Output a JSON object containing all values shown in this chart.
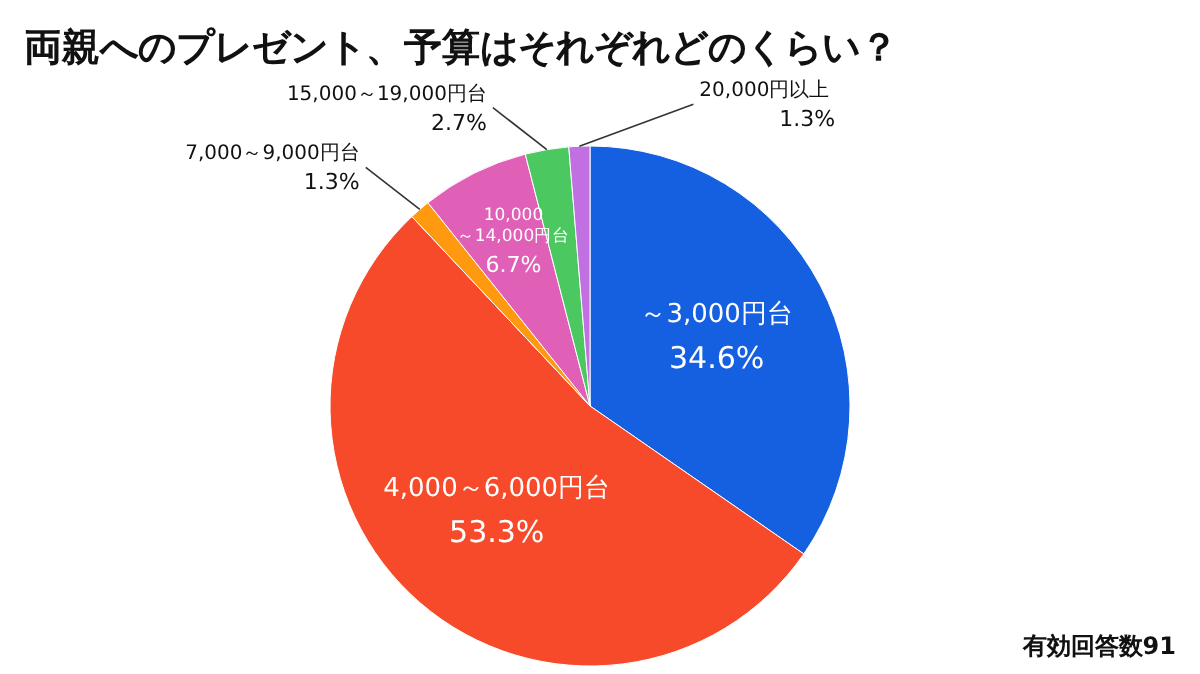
{
  "chart_data": {
    "type": "pie",
    "title": "両親へのプレゼント、予算はそれぞれどのくらい？",
    "categories": [
      "～3,000円台",
      "4,000～6,000円台",
      "7,000～9,000円台",
      "10,000～14,000円台",
      "15,000～19,000円台",
      "20,000円以上"
    ],
    "values": [
      34.6,
      53.3,
      1.3,
      6.7,
      2.7,
      1.3
    ],
    "colors": [
      "#1560e0",
      "#f64a2a",
      "#ff9a10",
      "#e060b8",
      "#4cc860",
      "#c070e0"
    ],
    "value_labels": [
      "34.6%",
      "53.3%",
      "1.3%",
      "6.7%",
      "2.7%",
      "1.3%"
    ],
    "annotations": [
      "有効回答数91"
    ]
  }
}
